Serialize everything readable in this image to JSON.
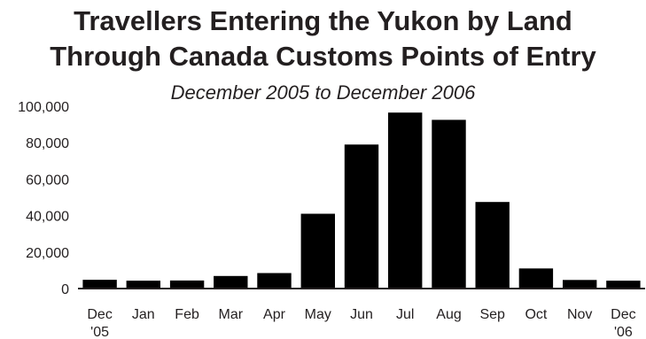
{
  "chart_data": {
    "type": "bar",
    "title": [
      "Travellers Entering the Yukon by Land",
      "Through Canada Customs Points of Entry"
    ],
    "subtitle": "December 2005 to December 2006",
    "xlabel": "",
    "ylabel": "",
    "categories": [
      [
        "Dec",
        "'05"
      ],
      [
        "Jan"
      ],
      [
        "Feb"
      ],
      [
        "Mar"
      ],
      [
        "Apr"
      ],
      [
        "May"
      ],
      [
        "Jun"
      ],
      [
        "Jul"
      ],
      [
        "Aug"
      ],
      [
        "Sep"
      ],
      [
        "Oct"
      ],
      [
        "Nov"
      ],
      [
        "Dec",
        "'06"
      ]
    ],
    "values": [
      4800,
      4300,
      4400,
      6900,
      8500,
      41000,
      79000,
      96500,
      92500,
      47500,
      11000,
      4700,
      4300
    ],
    "ylim": [
      0,
      100000
    ],
    "yticks": [
      0,
      20000,
      40000,
      60000,
      80000,
      100000
    ],
    "ytick_labels": [
      "0",
      "20,000",
      "40,000",
      "60,000",
      "80,000",
      "100,000"
    ],
    "bar_color": "#000000",
    "axis_color": "#231f20",
    "grid": false,
    "legend": "none"
  }
}
